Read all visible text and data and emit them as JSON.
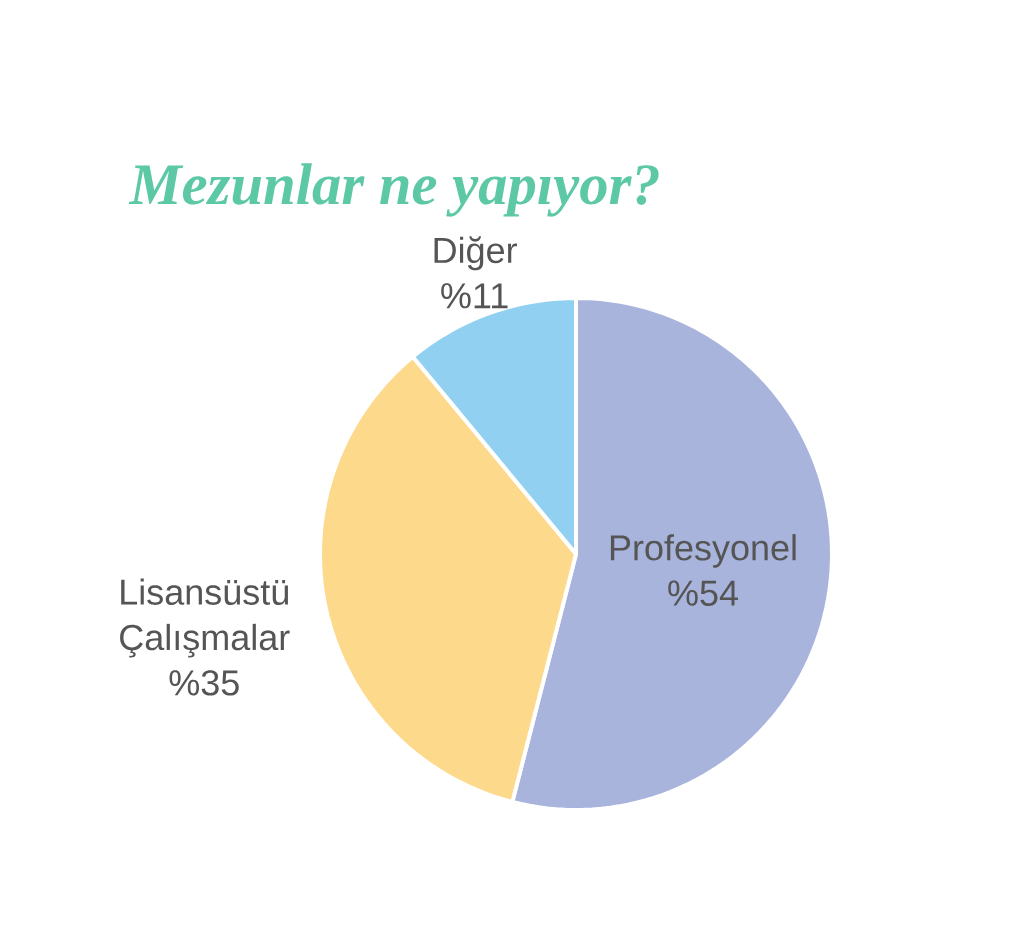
{
  "chart_data": {
    "type": "pie",
    "title": "Mezunlar ne yapıyor?",
    "categories": [
      "Profesyonel",
      "Lisansüstü Çalışmalar",
      "Diğer"
    ],
    "values": [
      54,
      35,
      11
    ],
    "colors": [
      "#a9b4dd",
      "#fdd98c",
      "#92d0f1"
    ],
    "value_labels": [
      "%54",
      "%35",
      "%11"
    ]
  }
}
